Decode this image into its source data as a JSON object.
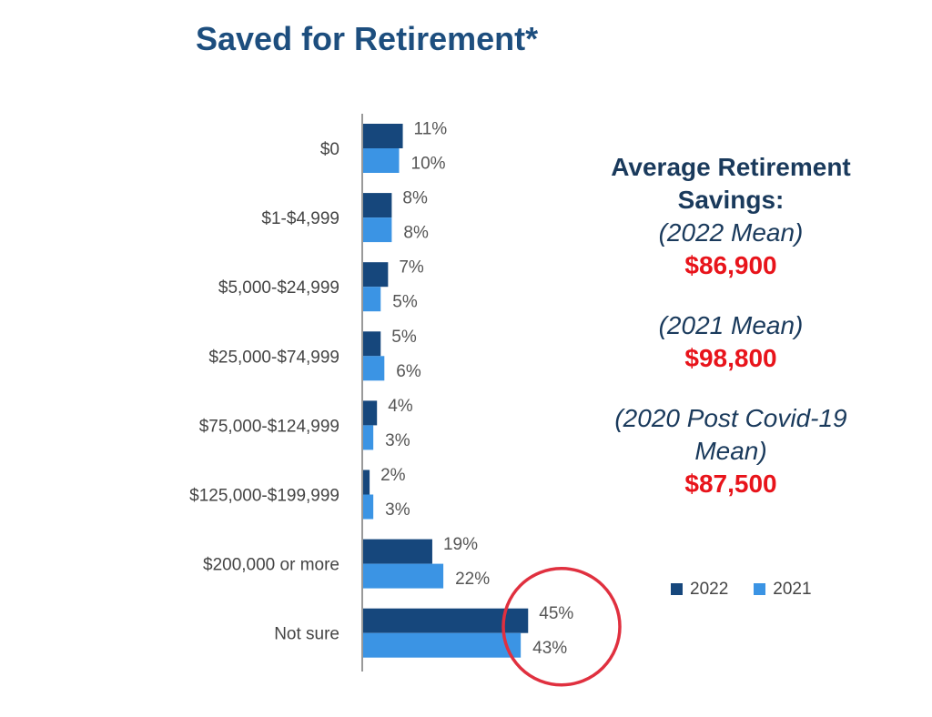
{
  "chart_data": {
    "type": "bar",
    "orientation": "horizontal",
    "title": "Saved for Retirement*",
    "categories": [
      "$0",
      "$1-$4,999",
      "$5,000-$24,999",
      "$25,000-$74,999",
      "$75,000-$124,999",
      "$125,000-$199,999",
      "$200,000 or more",
      "Not sure"
    ],
    "series": [
      {
        "name": "2022",
        "color": "#16477c",
        "values": [
          11,
          8,
          7,
          5,
          4,
          2,
          19,
          45
        ]
      },
      {
        "name": "2021",
        "color": "#3b94e4",
        "values": [
          10,
          8,
          5,
          6,
          3,
          3,
          22,
          43
        ]
      }
    ],
    "value_suffix": "%",
    "xlim": [
      0,
      50
    ],
    "legend": "bottom-right",
    "annotation": {
      "type": "circle",
      "color": "#e0303f",
      "highlight_category": "Not sure"
    }
  },
  "side": {
    "heading_1": "Average Retirement",
    "heading_2": "Savings:",
    "items": [
      {
        "label": "(2022 Mean)",
        "value": "$86,900"
      },
      {
        "label": "(2021 Mean)",
        "value": "$98,800"
      },
      {
        "label_1": "(2020 Post Covid-19",
        "label_2": "Mean)",
        "value": "$87,500"
      }
    ]
  }
}
